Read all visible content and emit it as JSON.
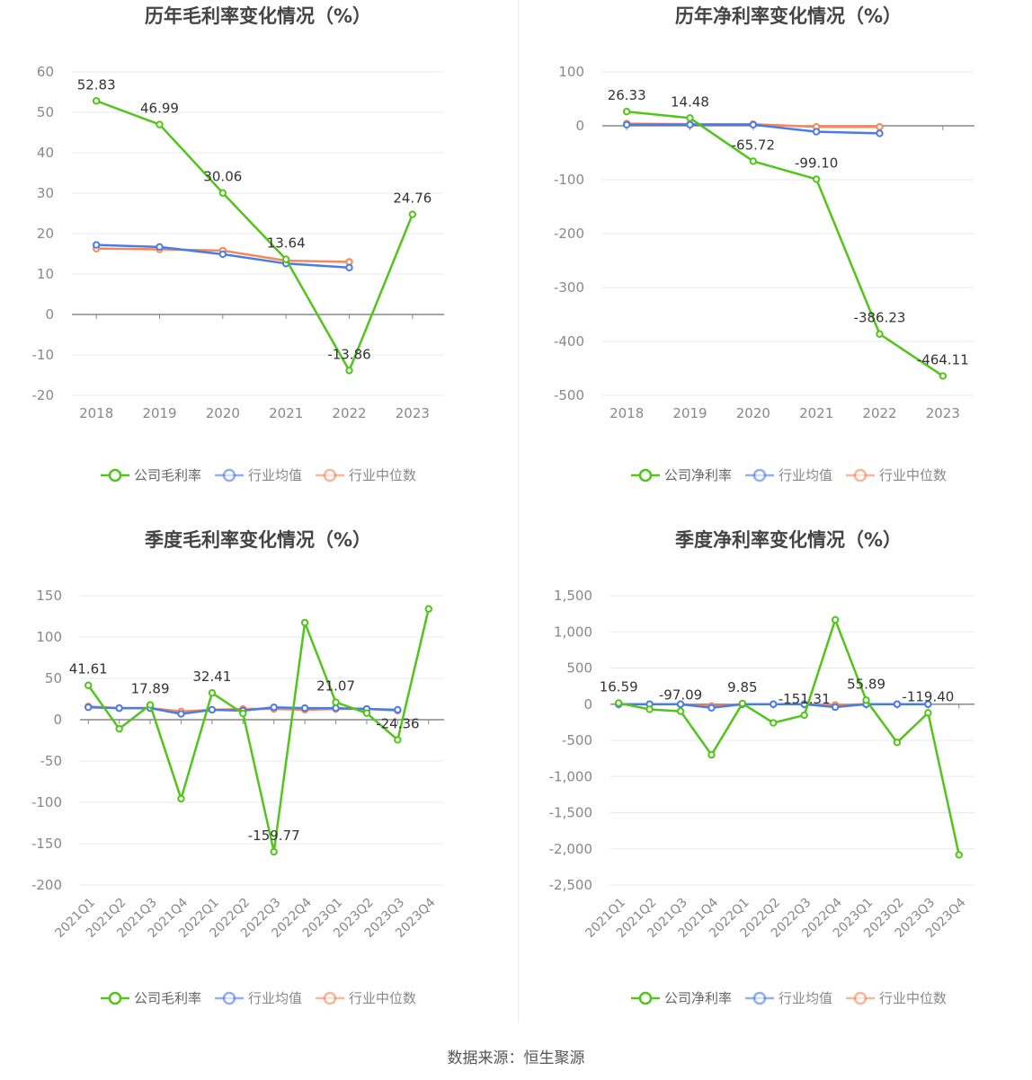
{
  "colors": {
    "company": "#52c41a",
    "avg": "#4a7be8",
    "median": "#f5875a"
  },
  "footer": "数据来源：恒生聚源",
  "chart_data": [
    {
      "type": "line",
      "title": "历年毛利率变化情况（%）",
      "categories": [
        "2018",
        "2019",
        "2020",
        "2021",
        "2022",
        "2023"
      ],
      "ylim": [
        -20,
        60
      ],
      "yticks": [
        -20,
        -10,
        0,
        10,
        20,
        30,
        40,
        50,
        60
      ],
      "ytick_labels": [
        "-20",
        "-10",
        "0",
        "10",
        "20",
        "30",
        "40",
        "50",
        "60"
      ],
      "grid": true,
      "legend_position": "bottom",
      "series": [
        {
          "name": "公司毛利率",
          "values": [
            52.83,
            46.99,
            30.06,
            13.64,
            -13.86,
            24.76
          ],
          "data_labels": [
            "52.83",
            "46.99",
            "30.06",
            "13.64",
            "-13.86",
            "24.76"
          ]
        },
        {
          "name": "行业均值",
          "values": [
            17.2,
            16.7,
            14.9,
            12.6,
            11.6,
            null
          ]
        },
        {
          "name": "行业中位数",
          "values": [
            16.3,
            16.1,
            15.8,
            13.3,
            13.0,
            null
          ]
        }
      ]
    },
    {
      "type": "line",
      "title": "历年净利率变化情况（%）",
      "categories": [
        "2018",
        "2019",
        "2020",
        "2021",
        "2022",
        "2023"
      ],
      "ylim": [
        -500,
        100
      ],
      "yticks": [
        -500,
        -400,
        -300,
        -200,
        -100,
        0,
        100
      ],
      "ytick_labels": [
        "-500",
        "-400",
        "-300",
        "-200",
        "-100",
        "0",
        "100"
      ],
      "grid": true,
      "legend_position": "bottom",
      "series": [
        {
          "name": "公司净利率",
          "values": [
            26.33,
            14.48,
            -65.72,
            -99.1,
            -386.23,
            -464.11
          ],
          "data_labels": [
            "26.33",
            "14.48",
            "-65.72",
            "-99.10",
            "-386.23",
            "-464.11"
          ]
        },
        {
          "name": "行业均值",
          "values": [
            2,
            2,
            2,
            -11,
            -14,
            null
          ]
        },
        {
          "name": "行业中位数",
          "values": [
            4,
            3,
            3,
            -2,
            -2,
            null
          ]
        }
      ]
    },
    {
      "type": "line",
      "title": "季度毛利率变化情况（%）",
      "categories": [
        "2021Q1",
        "2021Q2",
        "2021Q3",
        "2021Q4",
        "2022Q1",
        "2022Q2",
        "2022Q3",
        "2022Q4",
        "2023Q1",
        "2023Q2",
        "2023Q3",
        "2023Q4"
      ],
      "ylim": [
        -200,
        150
      ],
      "yticks": [
        -200,
        -150,
        -100,
        -50,
        0,
        50,
        100,
        150
      ],
      "ytick_labels": [
        "-200",
        "-150",
        "-100",
        "-50",
        "0",
        "50",
        "100",
        "150"
      ],
      "grid": true,
      "legend_position": "bottom",
      "series": [
        {
          "name": "公司毛利率",
          "values": [
            41.61,
            -11,
            17.89,
            -95.6,
            32.41,
            7.6,
            -159.77,
            117.5,
            21.07,
            8,
            -24.36,
            134
          ],
          "data_labels": [
            "41.61",
            null,
            "17.89",
            null,
            "32.41",
            null,
            "-159.77",
            null,
            "21.07",
            null,
            "-24.36",
            null
          ]
        },
        {
          "name": "行业均值",
          "values": [
            15,
            14,
            14,
            7,
            12,
            11,
            15,
            14,
            14,
            13,
            12,
            null
          ]
        },
        {
          "name": "行业中位数",
          "values": [
            16,
            14,
            14,
            10,
            12,
            13,
            13,
            12,
            13,
            13,
            11,
            null
          ]
        }
      ]
    },
    {
      "type": "line",
      "title": "季度净利率变化情况（%）",
      "categories": [
        "2021Q1",
        "2021Q2",
        "2021Q3",
        "2021Q4",
        "2022Q1",
        "2022Q2",
        "2022Q3",
        "2022Q4",
        "2023Q1",
        "2023Q2",
        "2023Q3",
        "2023Q4"
      ],
      "ylim": [
        -2500,
        1500
      ],
      "yticks": [
        -2500,
        -2000,
        -1500,
        -1000,
        -500,
        0,
        500,
        1000,
        1500
      ],
      "ytick_labels": [
        "-2,500",
        "-2,000",
        "-1,500",
        "-1,000",
        "-500",
        "0",
        "500",
        "1,000",
        "1,500"
      ],
      "grid": true,
      "legend_position": "bottom",
      "series": [
        {
          "name": "公司净利率",
          "values": [
            16.59,
            -71,
            -97.09,
            -700,
            9.85,
            -258,
            -151.31,
            1167,
            55.89,
            -529,
            -119.4,
            -2083
          ],
          "data_labels": [
            "16.59",
            null,
            "-97.09",
            null,
            "9.85",
            null,
            "-151.31",
            null,
            "55.89",
            null,
            "-119.40",
            null
          ]
        },
        {
          "name": "行业均值",
          "values": [
            0,
            0,
            0,
            -50,
            0,
            0,
            0,
            -40,
            0,
            0,
            0,
            null
          ]
        },
        {
          "name": "行业中位数",
          "values": [
            0,
            0,
            0,
            -25,
            0,
            0,
            0,
            -10,
            0,
            0,
            0,
            null
          ]
        }
      ]
    }
  ]
}
